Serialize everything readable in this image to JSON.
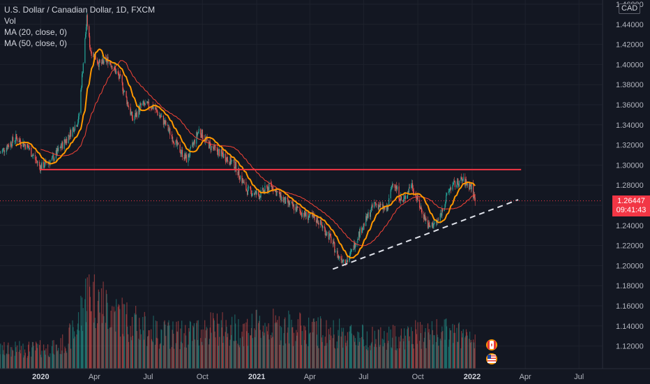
{
  "legend": {
    "symbol": "U.S. Dollar / Canadian Dollar, 1D, FXCM",
    "vol": "Vol",
    "ma20": "MA (20, close, 0)",
    "ma50": "MA (50, close, 0)"
  },
  "currency_tag": "CAD",
  "price_tag": {
    "price": "1.26447",
    "countdown": "09:41:43"
  },
  "colors": {
    "background": "#131722",
    "up": "#26a69a",
    "down": "#ef5350",
    "ma20": "#ff9800",
    "ma50": "#f44336",
    "resistance": "#f23645",
    "trend": "#e0e3eb",
    "grid": "#1e222d"
  },
  "icons": [
    "canada-flag-icon",
    "us-flag-icon"
  ],
  "chart_data": {
    "type": "candlestick",
    "title": "U.S. Dollar / Canadian Dollar, 1D, FXCM",
    "x_ticks": [
      "2020",
      "Apr",
      "Jul",
      "Oct",
      "2021",
      "Apr",
      "Jul",
      "Oct",
      "2022",
      "Apr",
      "Jul"
    ],
    "x_tick_dates": [
      "2020-01-01",
      "2020-04-01",
      "2020-07-01",
      "2020-10-01",
      "2021-01-01",
      "2021-04-01",
      "2021-07-01",
      "2021-10-01",
      "2022-01-01",
      "2022-04-01",
      "2022-07-01"
    ],
    "y_ticks": [
      "1.46000",
      "1.44000",
      "1.42000",
      "1.40000",
      "1.38000",
      "1.36000",
      "1.34000",
      "1.32000",
      "1.30000",
      "1.28000",
      "1.26000",
      "1.24000",
      "1.22000",
      "1.20000",
      "1.18000",
      "1.16000",
      "1.14000",
      "1.12000"
    ],
    "ylim": [
      1.11,
      1.46
    ],
    "xlim": [
      "2019-10-24",
      "2022-08-10"
    ],
    "last_price": 1.26447,
    "price_path": [
      [
        "2019-10-24",
        1.312
      ],
      [
        "2019-11-20",
        1.327
      ],
      [
        "2019-12-10",
        1.318
      ],
      [
        "2019-12-31",
        1.298
      ],
      [
        "2020-01-20",
        1.305
      ],
      [
        "2020-02-15",
        1.327
      ],
      [
        "2020-03-05",
        1.345
      ],
      [
        "2020-03-19",
        1.445
      ],
      [
        "2020-03-25",
        1.415
      ],
      [
        "2020-04-10",
        1.4
      ],
      [
        "2020-04-25",
        1.405
      ],
      [
        "2020-05-15",
        1.385
      ],
      [
        "2020-06-05",
        1.345
      ],
      [
        "2020-06-20",
        1.36
      ],
      [
        "2020-07-10",
        1.358
      ],
      [
        "2020-07-31",
        1.34
      ],
      [
        "2020-08-20",
        1.318
      ],
      [
        "2020-09-05",
        1.305
      ],
      [
        "2020-09-25",
        1.335
      ],
      [
        "2020-10-15",
        1.318
      ],
      [
        "2020-11-05",
        1.31
      ],
      [
        "2020-11-25",
        1.3
      ],
      [
        "2020-12-15",
        1.275
      ],
      [
        "2021-01-05",
        1.27
      ],
      [
        "2021-01-25",
        1.28
      ],
      [
        "2021-02-15",
        1.265
      ],
      [
        "2021-03-05",
        1.258
      ],
      [
        "2021-03-25",
        1.25
      ],
      [
        "2021-04-15",
        1.245
      ],
      [
        "2021-05-05",
        1.228
      ],
      [
        "2021-05-20",
        1.208
      ],
      [
        "2021-06-05",
        1.205
      ],
      [
        "2021-06-20",
        1.228
      ],
      [
        "2021-07-05",
        1.245
      ],
      [
        "2021-07-20",
        1.262
      ],
      [
        "2021-08-10",
        1.255
      ],
      [
        "2021-08-20",
        1.285
      ],
      [
        "2021-09-05",
        1.262
      ],
      [
        "2021-09-20",
        1.282
      ],
      [
        "2021-10-05",
        1.258
      ],
      [
        "2021-10-20",
        1.238
      ],
      [
        "2021-11-05",
        1.245
      ],
      [
        "2021-11-25",
        1.278
      ],
      [
        "2021-12-15",
        1.285
      ],
      [
        "2021-12-31",
        1.278
      ],
      [
        "2022-01-06",
        1.264
      ]
    ],
    "volume_profile": [
      [
        "2019-10-24",
        0.22
      ],
      [
        "2020-02-01",
        0.24
      ],
      [
        "2020-03-01",
        0.45
      ],
      [
        "2020-03-20",
        0.92
      ],
      [
        "2020-04-15",
        0.75
      ],
      [
        "2020-06-01",
        0.55
      ],
      [
        "2020-07-15",
        0.42
      ],
      [
        "2020-09-01",
        0.4
      ],
      [
        "2020-10-15",
        0.48
      ],
      [
        "2020-12-01",
        0.45
      ],
      [
        "2021-01-15",
        0.5
      ],
      [
        "2021-03-01",
        0.48
      ],
      [
        "2021-05-01",
        0.42
      ],
      [
        "2021-06-15",
        0.4
      ],
      [
        "2021-08-01",
        0.34
      ],
      [
        "2021-10-01",
        0.4
      ],
      [
        "2021-12-01",
        0.42
      ],
      [
        "2022-01-06",
        0.3
      ]
    ],
    "resistance_line": {
      "from": "2019-12-31",
      "to": "2022-03-25",
      "price": 1.2955
    },
    "trend_line": {
      "from": "2021-05-10",
      "to": "2022-03-20",
      "price_from": 1.1965,
      "price_to": 1.2655
    },
    "series": [
      {
        "name": "MA (20, close, 0)",
        "color": "#ff9800"
      },
      {
        "name": "MA (50, close, 0)",
        "color": "#f44336"
      }
    ]
  }
}
